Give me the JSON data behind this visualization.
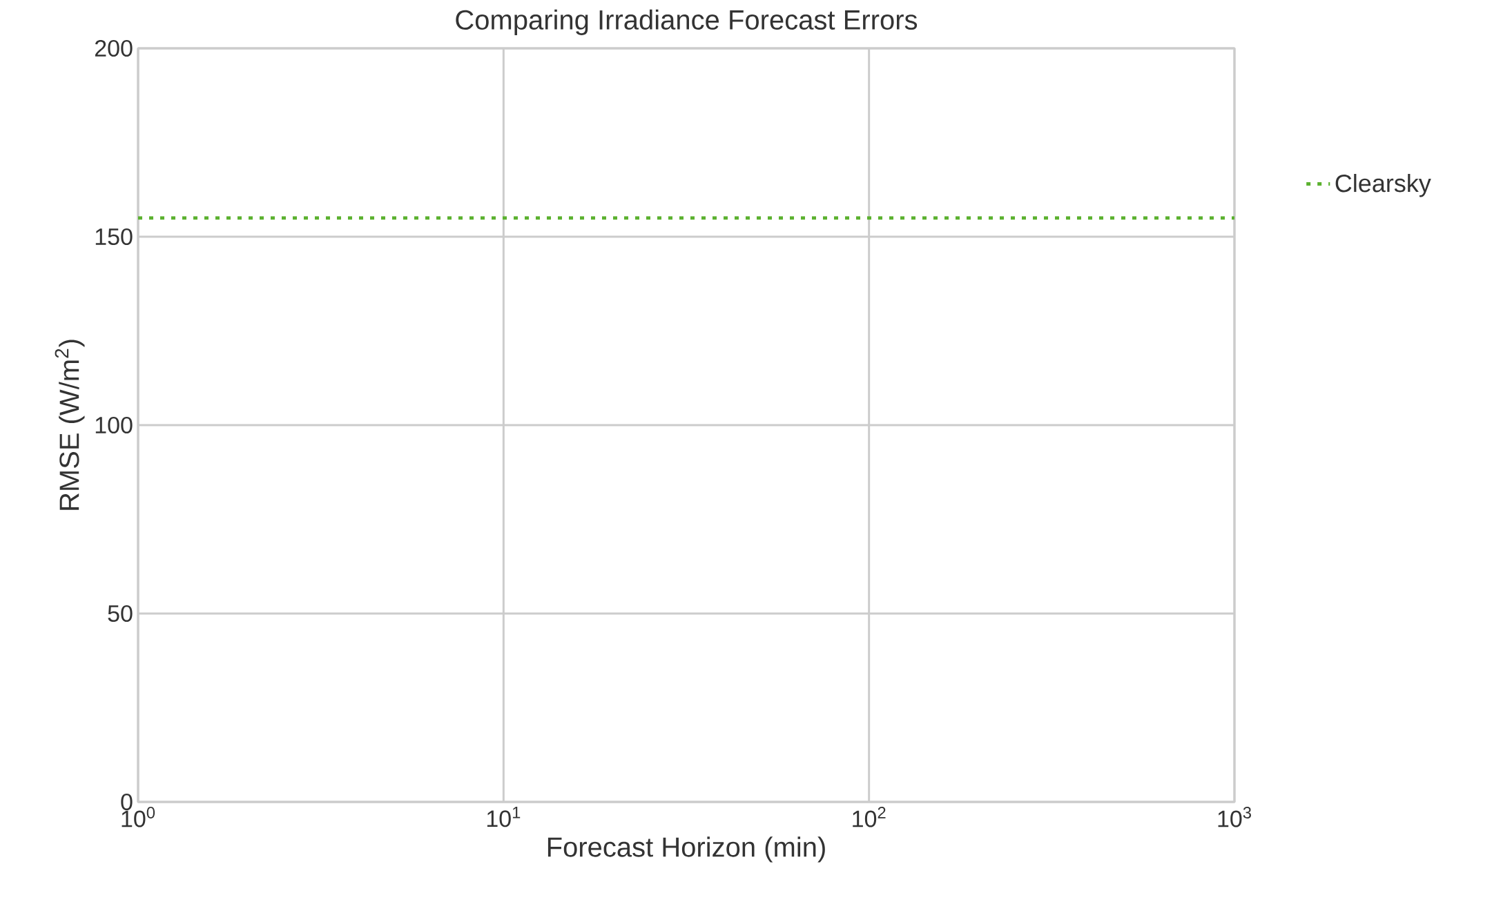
{
  "chart_data": {
    "type": "line",
    "title": "Comparing Irradiance Forecast Errors",
    "xlabel": "Forecast Horizon (min)",
    "ylabel": "RMSE (W/m$^{2}$)",
    "log": "x",
    "xlim": [
      1,
      1000
    ],
    "ylim": [
      0,
      200
    ],
    "xticks": [
      {
        "value": 1,
        "label": "10$^{0}$"
      },
      {
        "value": 10,
        "label": "10$^{1}$"
      },
      {
        "value": 100,
        "label": "10$^{2}$"
      },
      {
        "value": 1000,
        "label": "10$^{3}$"
      }
    ],
    "yticks": [
      0,
      50,
      100,
      150,
      200
    ],
    "grid": true,
    "legend": "right",
    "line_style": "dotted",
    "series": [
      {
        "name": "Clearsky",
        "color": "#5bb12f",
        "x": [
          1,
          1000
        ],
        "values": [
          155,
          155
        ]
      }
    ]
  }
}
